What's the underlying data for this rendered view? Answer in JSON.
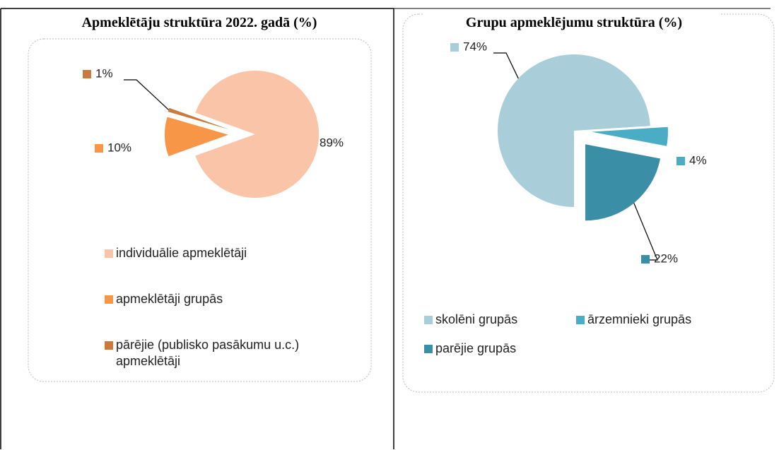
{
  "chart_data": [
    {
      "type": "pie",
      "title": "Apmeklētāju struktūra 2022. gadā (%)",
      "categories": [
        "individuālie apmeklētāji",
        "apmeklētāji grupās",
        "pārējie (publisko pasākumu u.c.) apmeklētāji"
      ],
      "values": [
        89,
        10,
        1
      ],
      "value_labels": [
        "89%",
        "10%",
        "1%"
      ],
      "colors": [
        "#f9c4a8",
        "#f79646",
        "#c97a3c"
      ],
      "legend": "bottom"
    },
    {
      "type": "pie",
      "title": "Grupu apmeklējumu struktūra (%)",
      "categories": [
        "skolēni grupās",
        "ārzemnieki grupās",
        "parējie grupās"
      ],
      "values": [
        74,
        4,
        22
      ],
      "value_labels": [
        "74%",
        "4%",
        "22%"
      ],
      "colors": [
        "#a9cdd9",
        "#4bacc6",
        "#3a8ea5"
      ],
      "legend": "bottom"
    }
  ]
}
